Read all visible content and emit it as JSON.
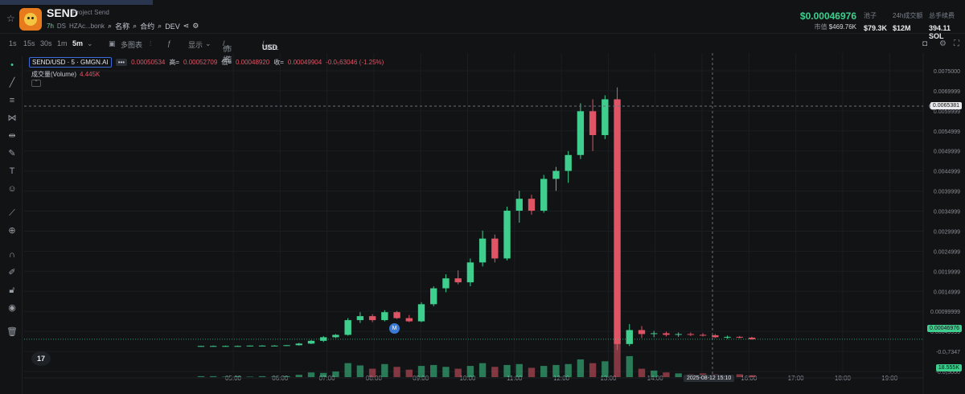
{
  "colors": {
    "up": "#3ecf8e",
    "down": "#e05566",
    "accent": "#3b6bd6",
    "bg": "#111315"
  },
  "token": {
    "name": "SEND",
    "project": "Project Send",
    "age": "7h",
    "ds": "DS",
    "address": "HZAc...bonk",
    "search_label": "名称",
    "contract_label": "合约",
    "dev_label": "DEV"
  },
  "stats": {
    "price": "$0.00046976",
    "mcap_label": "市值",
    "mcap_value": "$469.76K",
    "pool_label": "池子",
    "pool_value": "$79.3K",
    "volume_label": "24h成交额",
    "volume_value": "$12M",
    "fee_label": "总手续费",
    "fee_value": "394.11 SOL"
  },
  "toolbar": {
    "intervals": [
      "1s",
      "15s",
      "30s",
      "1m",
      "5m"
    ],
    "selected": "5m",
    "multi_chart": "多图表",
    "display": "显示",
    "price_label": "价格",
    "mcap_label": "市值",
    "usd_label": "USD",
    "sol_label": "SOL"
  },
  "legend": {
    "symbol": "SEND/USD · 5 · GMGN.AI",
    "dots": "•••",
    "open": "0.00050534",
    "high_label": "高=",
    "high": "0.00052709",
    "low_label": "低=",
    "low": "0.00048920",
    "close_label": "收=",
    "close": "0.00049904",
    "change": "-0.0₅63046 (-1.25%)",
    "volume_label": "成交量(Volume)",
    "volume_value": "4.445K"
  },
  "axis": {
    "y_ticks": [
      "0.0075000",
      "0.0069999",
      "0.0059999",
      "0.0054999",
      "0.0049999",
      "0.0044999",
      "0.0039999",
      "0.0034999",
      "0.0029999",
      "0.0024999",
      "0.0019999",
      "0.0014999",
      "0.00099999",
      "0.00049999",
      "-0.0₁7347",
      "-0.0₅5000"
    ],
    "x_ticks": [
      "05:00",
      "06:00",
      "07:00",
      "08:00",
      "09:00",
      "10:00",
      "11:00",
      "12:00",
      "13:00",
      "14:00",
      "15:00",
      "16:00",
      "17:00",
      "18:00",
      "19:00"
    ],
    "crosshair_price": "0.0065381",
    "current_price": "0.00046976",
    "volume_tag": "18.555K",
    "crosshair_date": "2025-08-12  15:10",
    "tv_logo": "17",
    "marker": "M"
  },
  "chart_data": {
    "type": "candlestick",
    "x_labels": [
      "05:00",
      "06:00",
      "07:00",
      "08:00",
      "09:00",
      "10:00",
      "11:00",
      "12:00",
      "13:00",
      "14:00",
      "15:00",
      "16:00"
    ],
    "ohlc": [
      [
        0.00029,
        0.0003,
        0.00028,
        0.0003
      ],
      [
        0.0003,
        0.00031,
        0.00029,
        0.0003
      ],
      [
        0.0003,
        0.00031,
        0.00029,
        0.0003
      ],
      [
        0.0003,
        0.00031,
        0.00029,
        0.0003
      ],
      [
        0.0003,
        0.00031,
        0.00029,
        0.00031
      ],
      [
        0.00031,
        0.00032,
        0.0003,
        0.00031
      ],
      [
        0.00031,
        0.00032,
        0.0003,
        0.00031
      ],
      [
        0.00031,
        0.00032,
        0.0003,
        0.00032
      ],
      [
        0.00032,
        0.00038,
        0.00031,
        0.00036
      ],
      [
        0.00036,
        0.00045,
        0.00035,
        0.00043
      ],
      [
        0.00043,
        0.00055,
        0.0004,
        0.00052
      ],
      [
        0.00052,
        0.0006,
        0.0005,
        0.00058
      ],
      [
        0.00058,
        0.001,
        0.00056,
        0.00095
      ],
      [
        0.00095,
        0.00115,
        0.00088,
        0.00105
      ],
      [
        0.00105,
        0.0011,
        0.0009,
        0.00095
      ],
      [
        0.00095,
        0.0012,
        0.00092,
        0.00115
      ],
      [
        0.00115,
        0.00118,
        0.00098,
        0.001
      ],
      [
        0.001,
        0.00108,
        0.0009,
        0.00092
      ],
      [
        0.00092,
        0.0014,
        0.0009,
        0.00135
      ],
      [
        0.00135,
        0.0018,
        0.0013,
        0.00175
      ],
      [
        0.00175,
        0.0021,
        0.00165,
        0.002
      ],
      [
        0.002,
        0.0022,
        0.00185,
        0.0019
      ],
      [
        0.0019,
        0.0025,
        0.0018,
        0.0024
      ],
      [
        0.0024,
        0.0032,
        0.0023,
        0.003
      ],
      [
        0.003,
        0.0031,
        0.0024,
        0.0025
      ],
      [
        0.0025,
        0.0038,
        0.00245,
        0.0037
      ],
      [
        0.0037,
        0.0042,
        0.0034,
        0.004
      ],
      [
        0.004,
        0.0041,
        0.0036,
        0.0037
      ],
      [
        0.0037,
        0.0046,
        0.00365,
        0.0045
      ],
      [
        0.0045,
        0.0048,
        0.0042,
        0.0047
      ],
      [
        0.0047,
        0.0052,
        0.0044,
        0.0051
      ],
      [
        0.0051,
        0.0064,
        0.005,
        0.0062
      ],
      [
        0.0062,
        0.0065,
        0.0052,
        0.0056
      ],
      [
        0.0056,
        0.0066,
        0.0055,
        0.0065
      ],
      [
        0.0065,
        0.0068,
        0.0002,
        0.00035
      ],
      [
        0.00035,
        0.00085,
        0.0003,
        0.0007
      ],
      [
        0.0007,
        0.0008,
        0.0005,
        0.0006
      ],
      [
        0.0006,
        0.00068,
        0.00052,
        0.00062
      ],
      [
        0.00062,
        0.00066,
        0.00054,
        0.00058
      ],
      [
        0.00058,
        0.00064,
        0.00053,
        0.0006
      ],
      [
        0.0006,
        0.00064,
        0.00055,
        0.00058
      ],
      [
        0.00058,
        0.00062,
        0.00054,
        0.00057
      ],
      [
        0.00057,
        0.0006,
        0.0005,
        0.00052
      ],
      [
        0.00052,
        0.00056,
        0.00048,
        0.00053
      ],
      [
        0.00053,
        0.00055,
        0.00049,
        0.00051
      ],
      [
        0.00051,
        0.00053,
        0.00046,
        0.00047
      ]
    ],
    "volume": [
      2,
      2,
      1,
      2,
      1,
      2,
      1,
      2,
      5,
      10,
      9,
      12,
      30,
      25,
      18,
      28,
      22,
      16,
      24,
      26,
      22,
      18,
      24,
      30,
      22,
      26,
      28,
      20,
      24,
      26,
      28,
      38,
      30,
      34,
      100,
      45,
      18,
      14,
      10,
      8,
      6,
      8,
      6,
      5,
      6,
      4
    ],
    "ylim": [
      -0.00026,
      0.0075
    ],
    "grid": true
  }
}
